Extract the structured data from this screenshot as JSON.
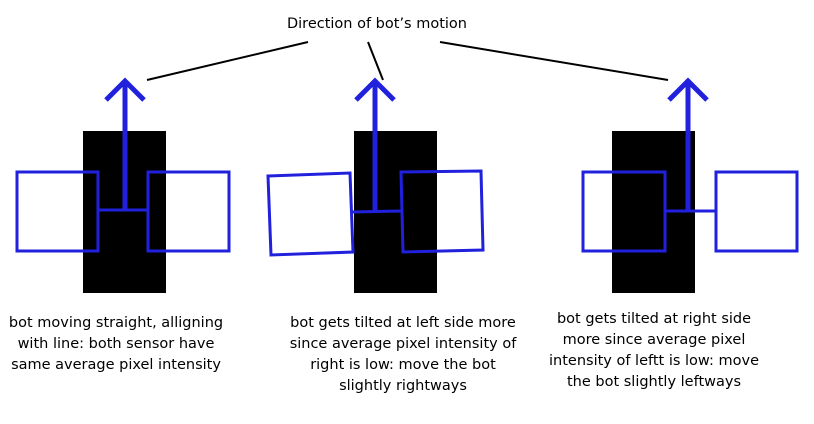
{
  "title": "Direction of bot’s motion",
  "colors": {
    "bot": "#2020dd",
    "line": "#000000",
    "background": "#ffffff"
  },
  "panels": [
    {
      "state": "straight",
      "caption_lines": [
        "bot moving straight, alligning",
        "with line: both sensor have",
        "same average pixel intensity"
      ]
    },
    {
      "state": "tilted-left",
      "caption_lines": [
        "bot gets tilted at left side more",
        "since average pixel intensity of",
        "right is low: move the bot",
        "slightly rightways"
      ]
    },
    {
      "state": "tilted-right",
      "caption_lines": [
        "bot gets tilted at right side",
        "more since average pixel",
        "intensity of leftt is low: move",
        "the bot slightly leftways"
      ]
    }
  ]
}
